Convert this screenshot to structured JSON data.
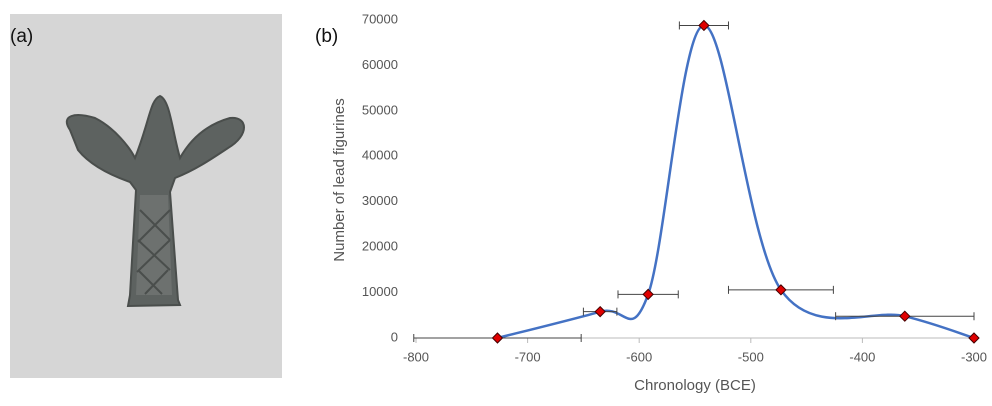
{
  "panel_labels": {
    "a": "(a)",
    "b": "(b)"
  },
  "chart_data": {
    "type": "line",
    "x_label": "Chronology (BCE)",
    "y_label": "Number of lead figurines",
    "x": [
      -727,
      -635,
      -592,
      -542,
      -473,
      -362,
      -300
    ],
    "series": [
      {
        "color": "#4472c4",
        "marker_color": "#e00000",
        "values": [
          0,
          5800,
          9600,
          68800,
          10600,
          4800,
          0
        ],
        "x_errors": [
          75,
          15,
          27,
          22,
          47,
          62,
          null
        ]
      }
    ],
    "xlim": [
      -800,
      -300
    ],
    "xticks": [
      -800,
      -700,
      -600,
      -500,
      -400,
      -300
    ],
    "ylim": [
      0,
      70000
    ],
    "yticks": [
      0,
      10000,
      20000,
      30000,
      40000,
      50000,
      60000,
      70000
    ],
    "grid": false
  }
}
